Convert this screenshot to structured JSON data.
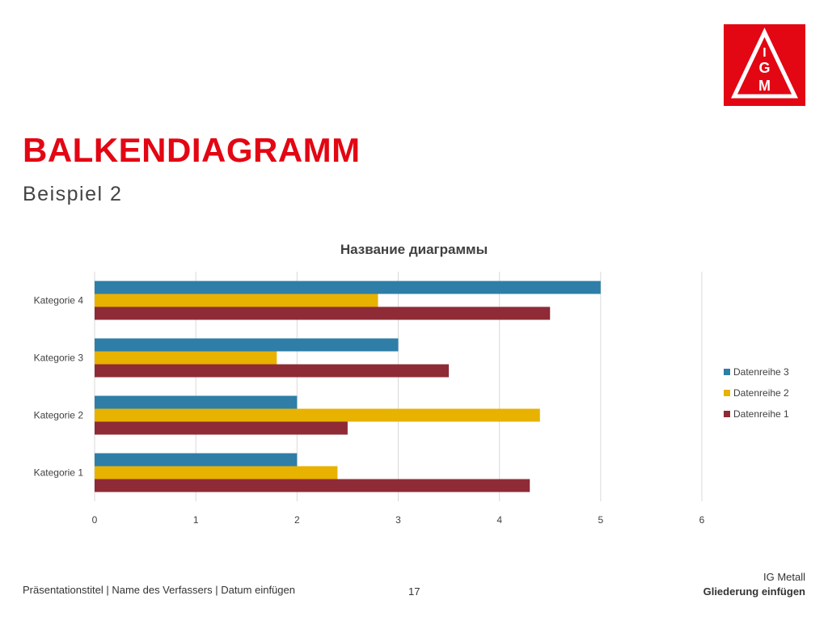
{
  "slide": {
    "title": "BALKENDIAGRAMM",
    "subtitle": "Beispiel 2"
  },
  "footer": {
    "presentation_info": "Präsentationstitel | Name des Verfassers | Datum einfügen",
    "page_number": "17",
    "org": "IG Metall",
    "section": "Gliederung einfügen"
  },
  "logo": {
    "icon": "ig-metall-logo-icon",
    "text": "IGM",
    "color": "#e30613"
  },
  "chart_data": {
    "type": "bar",
    "orientation": "horizontal",
    "title": "Название диаграммы",
    "categories": [
      "Kategorie 1",
      "Kategorie 2",
      "Kategorie 3",
      "Kategorie 4"
    ],
    "series": [
      {
        "name": "Datenreihe 1",
        "color": "#8e2b36",
        "values": [
          4.3,
          2.5,
          3.5,
          4.5
        ]
      },
      {
        "name": "Datenreihe 2",
        "color": "#e8b200",
        "values": [
          2.4,
          4.4,
          1.8,
          2.8
        ]
      },
      {
        "name": "Datenreihe 3",
        "color": "#2e7ea8",
        "values": [
          2,
          2,
          3,
          5
        ]
      }
    ],
    "xlim": [
      0,
      6
    ],
    "xticks": [
      "0",
      "1",
      "2",
      "3",
      "4",
      "5",
      "6"
    ],
    "grid": true,
    "legend_position": "right"
  }
}
